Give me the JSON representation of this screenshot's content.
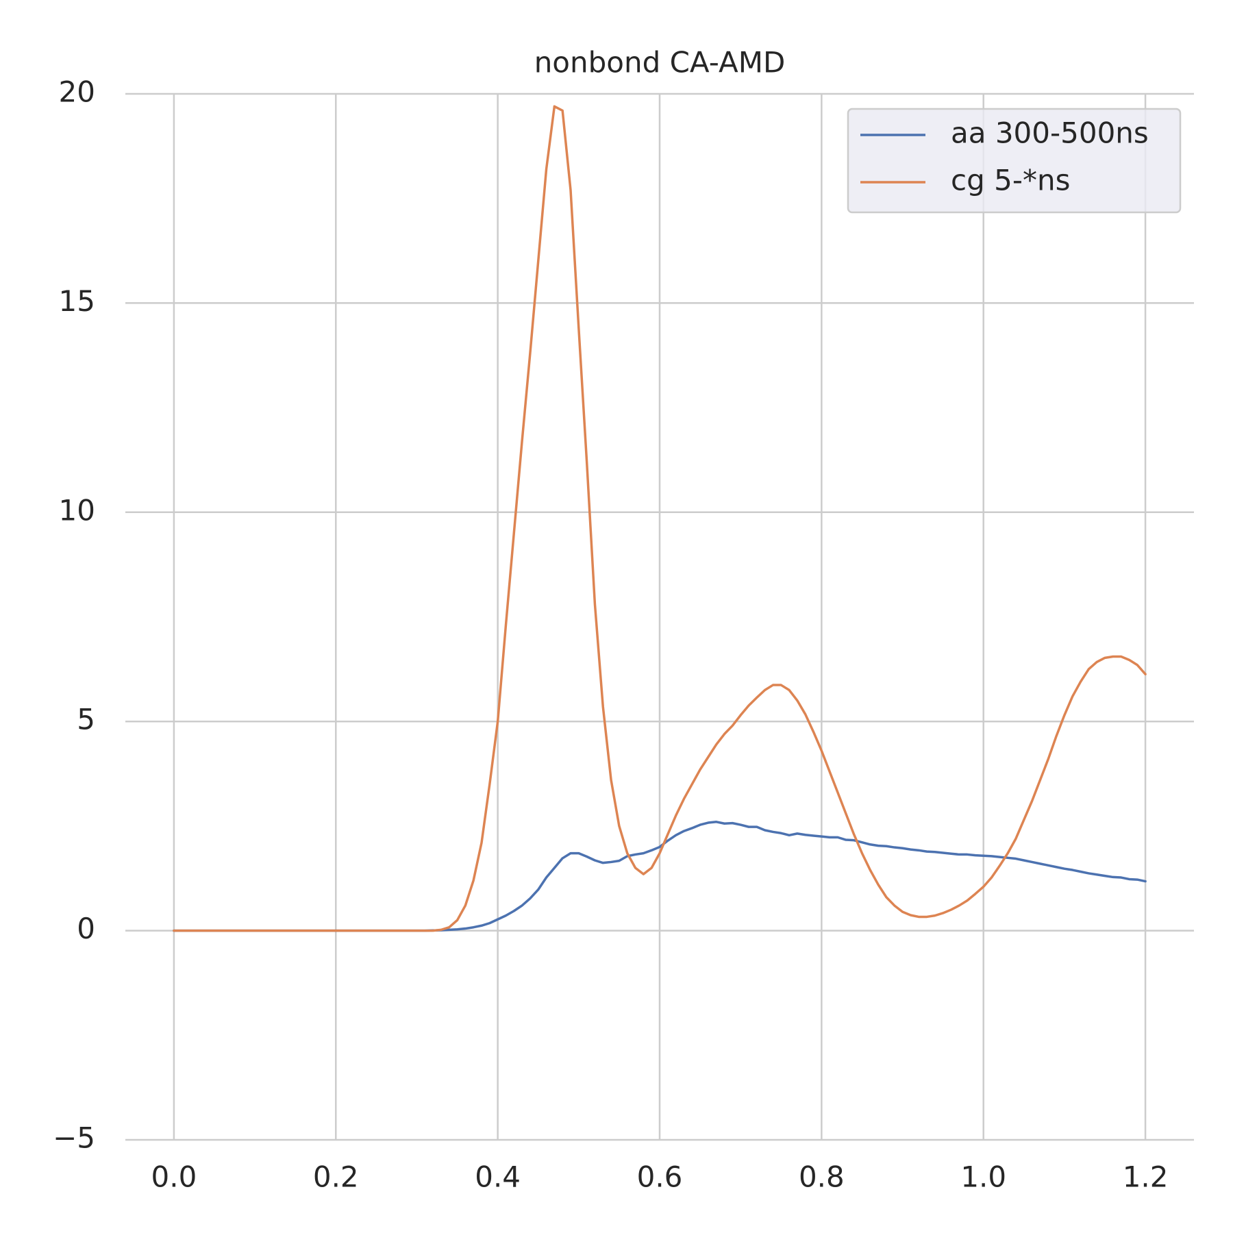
{
  "chart_data": {
    "type": "line",
    "title": "nonbond CA-AMD",
    "x": [
      0,
      0.01,
      0.02,
      0.03,
      0.04,
      0.05,
      0.06,
      0.07,
      0.08,
      0.09,
      0.1,
      0.11,
      0.12,
      0.13,
      0.14,
      0.15,
      0.16,
      0.17,
      0.18,
      0.19,
      0.2,
      0.21,
      0.22,
      0.23,
      0.24,
      0.25,
      0.26,
      0.27,
      0.28,
      0.29,
      0.3,
      0.31,
      0.32,
      0.33,
      0.34,
      0.35,
      0.36,
      0.37,
      0.38,
      0.39,
      0.4,
      0.41,
      0.42,
      0.43,
      0.44,
      0.45,
      0.46,
      0.47,
      0.48,
      0.49,
      0.5,
      0.51,
      0.52,
      0.53,
      0.54,
      0.55,
      0.56,
      0.57,
      0.58,
      0.59,
      0.6,
      0.61,
      0.62,
      0.63,
      0.64,
      0.65,
      0.66,
      0.67,
      0.68,
      0.69,
      0.7,
      0.71,
      0.72,
      0.73,
      0.74,
      0.75,
      0.76,
      0.77,
      0.78,
      0.79,
      0.8,
      0.81,
      0.82,
      0.83,
      0.84,
      0.85,
      0.86,
      0.87,
      0.88,
      0.89,
      0.9,
      0.91,
      0.92,
      0.93,
      0.94,
      0.95,
      0.96,
      0.97,
      0.98,
      0.99,
      1.0,
      1.01,
      1.02,
      1.03,
      1.04,
      1.05,
      1.06,
      1.07,
      1.08,
      1.09,
      1.1,
      1.11,
      1.12,
      1.13,
      1.14,
      1.15,
      1.16,
      1.17,
      1.18,
      1.19,
      1.2
    ],
    "series": [
      {
        "name": "aa 300-500ns",
        "color": "#4c72b0",
        "values": [
          0,
          0,
          0,
          0,
          0,
          0,
          0,
          0,
          0,
          0,
          0,
          0,
          0,
          0,
          0,
          0,
          0,
          0,
          0,
          0,
          0,
          0,
          0,
          0,
          0,
          0,
          0,
          0,
          0,
          0,
          0,
          0,
          0.005,
          0.01,
          0.02,
          0.03,
          0.05,
          0.08,
          0.12,
          0.18,
          0.27,
          0.36,
          0.47,
          0.6,
          0.77,
          0.98,
          1.27,
          1.5,
          1.73,
          1.85,
          1.85,
          1.77,
          1.68,
          1.62,
          1.64,
          1.67,
          1.78,
          1.82,
          1.85,
          1.92,
          2.0,
          2.15,
          2.28,
          2.38,
          2.45,
          2.53,
          2.58,
          2.6,
          2.56,
          2.57,
          2.53,
          2.48,
          2.48,
          2.4,
          2.36,
          2.33,
          2.28,
          2.32,
          2.29,
          2.27,
          2.25,
          2.23,
          2.23,
          2.17,
          2.16,
          2.11,
          2.06,
          2.03,
          2.02,
          1.99,
          1.97,
          1.94,
          1.92,
          1.89,
          1.88,
          1.86,
          1.84,
          1.82,
          1.82,
          1.8,
          1.79,
          1.78,
          1.76,
          1.74,
          1.72,
          1.68,
          1.64,
          1.6,
          1.56,
          1.52,
          1.48,
          1.45,
          1.41,
          1.37,
          1.34,
          1.31,
          1.28,
          1.27,
          1.23,
          1.22,
          1.18
        ]
      },
      {
        "name": "cg 5-*ns",
        "color": "#dd8452",
        "values": [
          0,
          0,
          0,
          0,
          0,
          0,
          0,
          0,
          0,
          0,
          0,
          0,
          0,
          0,
          0,
          0,
          0,
          0,
          0,
          0,
          0,
          0,
          0,
          0,
          0,
          0,
          0,
          0,
          0,
          0,
          0,
          0,
          0,
          0.02,
          0.08,
          0.25,
          0.6,
          1.2,
          2.1,
          3.5,
          5.0,
          7.3,
          9.5,
          11.7,
          13.8,
          16.0,
          18.2,
          19.7,
          19.6,
          17.7,
          14.4,
          11.2,
          7.8,
          5.35,
          3.6,
          2.5,
          1.85,
          1.5,
          1.35,
          1.5,
          1.85,
          2.3,
          2.75,
          3.15,
          3.5,
          3.85,
          4.15,
          4.45,
          4.7,
          4.9,
          5.15,
          5.38,
          5.57,
          5.75,
          5.87,
          5.87,
          5.75,
          5.5,
          5.17,
          4.75,
          4.3,
          3.8,
          3.3,
          2.8,
          2.3,
          1.85,
          1.45,
          1.1,
          0.8,
          0.6,
          0.45,
          0.37,
          0.33,
          0.33,
          0.36,
          0.42,
          0.5,
          0.6,
          0.72,
          0.88,
          1.05,
          1.27,
          1.55,
          1.85,
          2.2,
          2.65,
          3.1,
          3.6,
          4.1,
          4.65,
          5.15,
          5.6,
          5.95,
          6.25,
          6.42,
          6.52,
          6.55,
          6.55,
          6.47,
          6.35,
          6.13
        ]
      }
    ],
    "xlim": [
      -0.06,
      1.26
    ],
    "xticks": [
      {
        "value": 0,
        "label": "0.0"
      },
      0.2,
      0.4,
      0.6,
      0.8,
      {
        "value": 1,
        "label": "1.0"
      },
      1.2
    ],
    "ylim": [
      -5,
      20
    ],
    "yticks": [
      {
        "value": -5,
        "label": "−5"
      },
      0,
      5,
      10,
      15,
      20
    ],
    "grid": true,
    "legend": "upper right"
  }
}
